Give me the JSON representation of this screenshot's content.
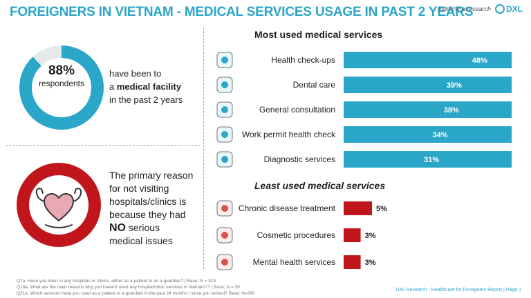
{
  "header": {
    "title": "FOREIGNERS IN VIETNAM - MEDICAL SERVICES USAGE IN PAST 2 YEARS",
    "brand_primary": "indochina research",
    "brand_secondary": "DXL"
  },
  "left_panel": {
    "visited": {
      "percent_label": "88%",
      "percent_value": 88,
      "respondents_label": "respondents",
      "line1": "have been to",
      "line2_prefix": "a",
      "line2_bold": "medical facility",
      "line3": "in the past 2 years",
      "icon": "donut-ring"
    },
    "reason": {
      "line1": "The primary reason",
      "line2": "for not visiting",
      "line3": "hospitals/clinics is",
      "line4": "because they had",
      "bold": "NO",
      "line5_suffix": "serious",
      "line6": "medical issues",
      "icon": "strong-heart-icon"
    }
  },
  "chart_data": [
    {
      "type": "bar",
      "orientation": "horizontal",
      "title": "Most used medical services",
      "categories": [
        "Health check-ups",
        "Dental care",
        "General consultation",
        "Work permit health check",
        "Diagnostic services"
      ],
      "values": [
        48,
        39,
        38,
        34,
        31
      ],
      "value_labels": [
        "48%",
        "39%",
        "38%",
        "34%",
        "31%"
      ],
      "icons": [
        "clipboard-check-icon",
        "tooth-icon",
        "doctor-consult-icon",
        "id-card-icon",
        "lab-flask-icon"
      ],
      "color": "#2aa6c9",
      "xlim": [
        0,
        50
      ],
      "label_position": "inside"
    },
    {
      "type": "bar",
      "orientation": "horizontal",
      "title": "Least used medical services",
      "categories": [
        "Chronic disease treatment",
        "Cosmetic procedures",
        "Mental health services"
      ],
      "values": [
        5,
        3,
        3
      ],
      "value_labels": [
        "5%",
        "3%",
        "3%"
      ],
      "icons": [
        "person-chronic-icon",
        "cosmetic-face-icon",
        "heart-mind-icon"
      ],
      "color": "#c0161b",
      "xlim": [
        0,
        50
      ],
      "label_position": "outside"
    }
  ],
  "footnotes": [
    "Q7a. Have you been to any hospitals or clinics, either as a patient or as a guardian? | Base: N = 319",
    "Q18a. What are the main reasons why you haven't used any hospital/clinic services in Vietnam?? | Base: N = 39",
    "Q21a. Which services have you used as a patient or a guardian in the past 24 months / since you arrived? Base: N=280"
  ],
  "footer_right": "DXL Research - Healthcare for Foreigners Report | Page 1",
  "colors": {
    "accent": "#2aa6c9",
    "alert": "#c0161b"
  }
}
